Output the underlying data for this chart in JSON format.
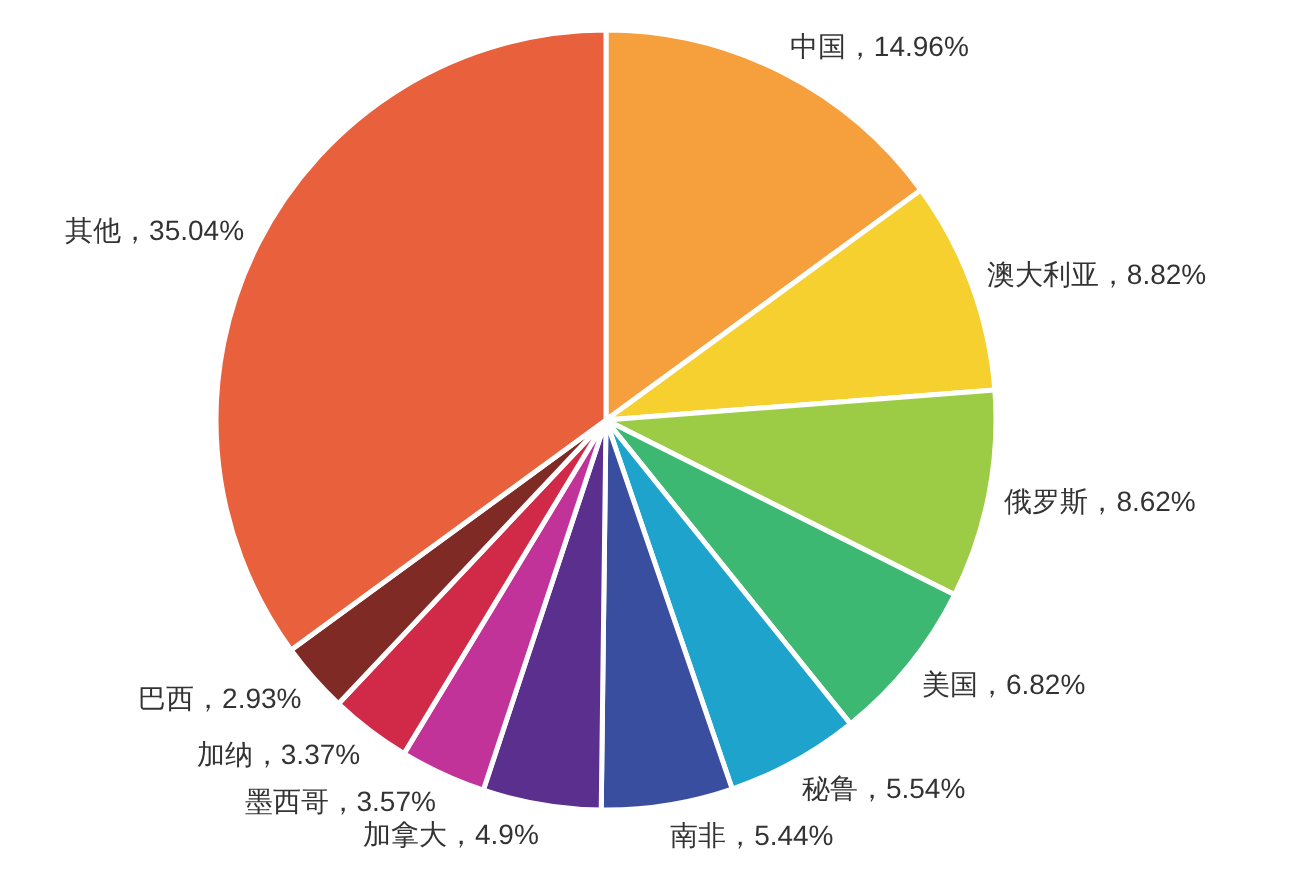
{
  "chart_data": {
    "type": "pie",
    "categories": [
      "中国",
      "澳大利亚",
      "俄罗斯",
      "美国",
      "秘鲁",
      "南非",
      "加拿大",
      "墨西哥",
      "加纳",
      "巴西",
      "其他"
    ],
    "values": [
      14.96,
      8.82,
      8.62,
      6.82,
      5.54,
      5.44,
      4.9,
      3.57,
      3.37,
      2.93,
      35.04
    ],
    "colors": [
      "#f5a03c",
      "#f5d02e",
      "#9ccb45",
      "#3db873",
      "#1ea4cc",
      "#3a4ea0",
      "#5b2f8e",
      "#c2339a",
      "#d12a48",
      "#7f2a24",
      "#e8603c"
    ],
    "value_labels": [
      "14.96%",
      "8.82%",
      "8.62%",
      "6.82%",
      "5.54%",
      "5.44%",
      "4.9%",
      "3.57%",
      "3.37%",
      "2.93%",
      "35.04%"
    ]
  }
}
